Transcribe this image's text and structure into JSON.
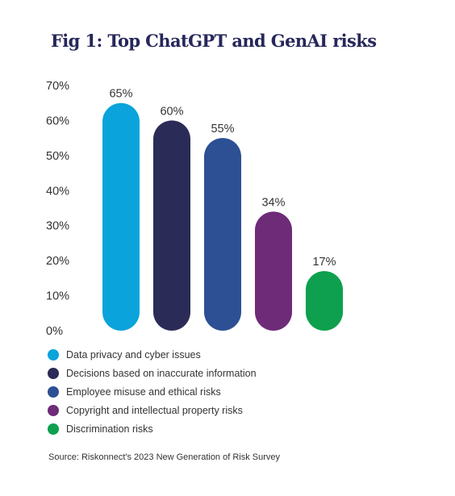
{
  "title": "Fig 1: Top ChatGPT and GenAI risks",
  "source": "Source: Riskonnect's 2023 New Generation of Risk Survey",
  "chart_data": {
    "type": "bar",
    "title": "Fig 1: Top ChatGPT and GenAI risks",
    "xlabel": "",
    "ylabel": "",
    "ylim": [
      0,
      70
    ],
    "yticks": [
      0,
      10,
      20,
      30,
      40,
      50,
      60,
      70
    ],
    "ytick_labels": [
      "0%",
      "10%",
      "20%",
      "30%",
      "40%",
      "50%",
      "60%",
      "70%"
    ],
    "grid": false,
    "legend_position": "bottom",
    "categories": [
      "Data privacy and cyber issues",
      "Decisions based on inaccurate information",
      "Employee misuse and ethical risks",
      "Copyright and intellectual property risks",
      "Discrimination risks"
    ],
    "values": [
      65,
      60,
      55,
      34,
      17
    ],
    "data_labels": [
      "65%",
      "60%",
      "55%",
      "34%",
      "17%"
    ],
    "colors": [
      "#0aa3dc",
      "#2a2b57",
      "#2d4f93",
      "#6e2b78",
      "#0ea04e"
    ]
  }
}
